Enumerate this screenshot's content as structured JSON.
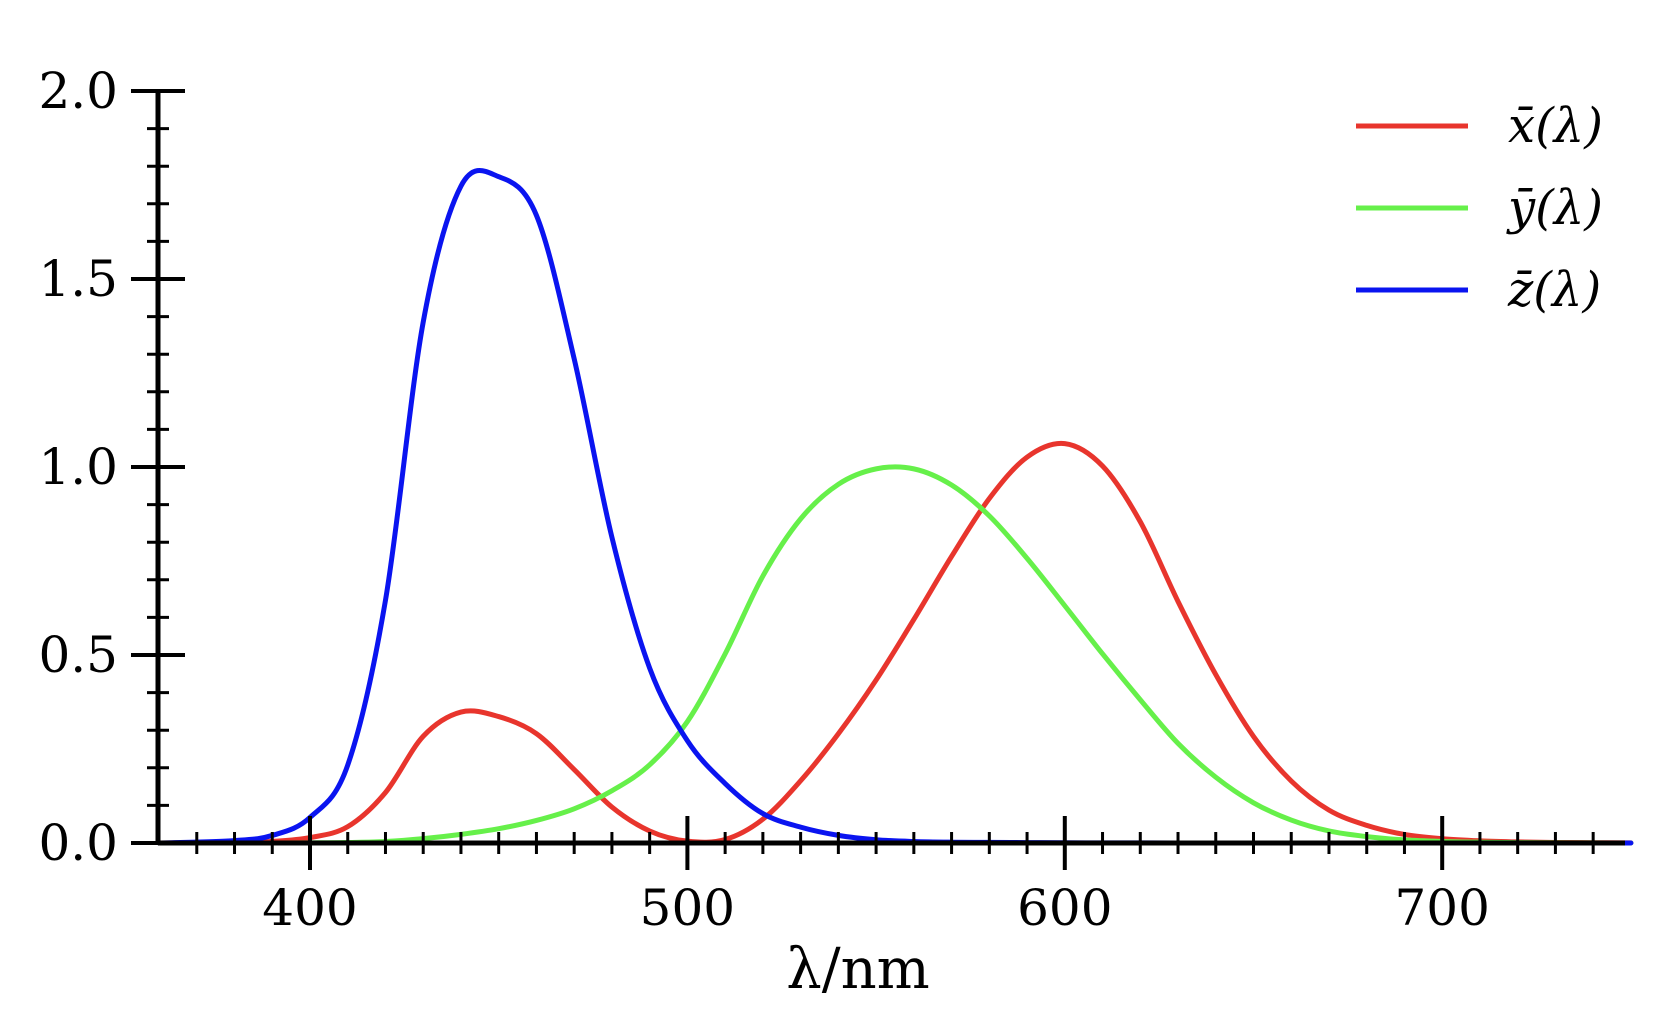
{
  "chart_data": {
    "type": "line",
    "title": "",
    "xlabel": "λ/nm",
    "ylabel": "",
    "xlim": [
      360,
      750
    ],
    "ylim": [
      0,
      2.0
    ],
    "x_ticks": [
      400,
      500,
      600,
      700
    ],
    "x_tick_labels": [
      "400",
      "500",
      "600",
      "700"
    ],
    "x_minor_step": 10,
    "y_ticks": [
      0,
      0.5,
      1.0,
      1.5,
      2.0
    ],
    "y_tick_labels": [
      "0.0",
      "0.5",
      "1.0",
      "1.5",
      "2.0"
    ],
    "y_minor_step": 0.1,
    "grid": false,
    "legend_position": "top-right",
    "series": [
      {
        "name": "x̄(λ)",
        "color": "#e8352d",
        "x": [
          360,
          380,
          390,
          400,
          410,
          420,
          430,
          440,
          450,
          460,
          470,
          480,
          490,
          500,
          510,
          520,
          530,
          540,
          550,
          560,
          570,
          580,
          590,
          600,
          610,
          620,
          630,
          640,
          650,
          660,
          670,
          680,
          690,
          700,
          710,
          720,
          730,
          740,
          750
        ],
        "y": [
          0.0001,
          0.0014,
          0.0042,
          0.0143,
          0.0435,
          0.1344,
          0.2839,
          0.3483,
          0.3362,
          0.2908,
          0.1954,
          0.0956,
          0.032,
          0.0049,
          0.0093,
          0.0633,
          0.1655,
          0.2904,
          0.4334,
          0.5945,
          0.7621,
          0.9163,
          1.0263,
          1.0622,
          1.0026,
          0.8544,
          0.6424,
          0.4479,
          0.2835,
          0.1649,
          0.0874,
          0.0468,
          0.0227,
          0.0114,
          0.0058,
          0.0029,
          0.0014,
          0.0007,
          0.0003
        ]
      },
      {
        "name": "ȳ(λ)",
        "color": "#66f04a",
        "x": [
          360,
          380,
          390,
          400,
          410,
          420,
          430,
          440,
          450,
          460,
          470,
          480,
          490,
          500,
          510,
          520,
          530,
          540,
          550,
          560,
          570,
          580,
          590,
          600,
          610,
          620,
          630,
          640,
          650,
          660,
          670,
          680,
          690,
          700,
          710,
          720,
          730,
          740,
          750
        ],
        "y": [
          0.0,
          0.0,
          0.0001,
          0.0004,
          0.0012,
          0.004,
          0.0116,
          0.023,
          0.038,
          0.06,
          0.091,
          0.139,
          0.208,
          0.323,
          0.503,
          0.71,
          0.862,
          0.954,
          0.995,
          0.995,
          0.952,
          0.87,
          0.757,
          0.631,
          0.503,
          0.381,
          0.265,
          0.175,
          0.107,
          0.061,
          0.032,
          0.017,
          0.0082,
          0.0041,
          0.0021,
          0.001,
          0.0005,
          0.0002,
          0.0001
        ]
      },
      {
        "name": "z̄(λ)",
        "color": "#0a14f0",
        "x": [
          360,
          380,
          390,
          400,
          410,
          420,
          430,
          440,
          450,
          460,
          470,
          480,
          490,
          500,
          510,
          520,
          530,
          540,
          550,
          560,
          570,
          580,
          590,
          600,
          610,
          620,
          630,
          640,
          650,
          660,
          670,
          680,
          690,
          700,
          710,
          720,
          730,
          740,
          750
        ],
        "y": [
          0.0,
          0.0065,
          0.0201,
          0.0679,
          0.2074,
          0.6456,
          1.3856,
          1.7471,
          1.7721,
          1.6692,
          1.2876,
          0.813,
          0.4652,
          0.272,
          0.1582,
          0.0782,
          0.0422,
          0.0203,
          0.0087,
          0.0039,
          0.0021,
          0.0017,
          0.0011,
          0.0008,
          0.0003,
          0.0002,
          0.0,
          0.0,
          0.0,
          0.0,
          0.0,
          0.0,
          0.0,
          0.0,
          0.0,
          0.0,
          0.0,
          0.0,
          0.0
        ]
      }
    ]
  }
}
